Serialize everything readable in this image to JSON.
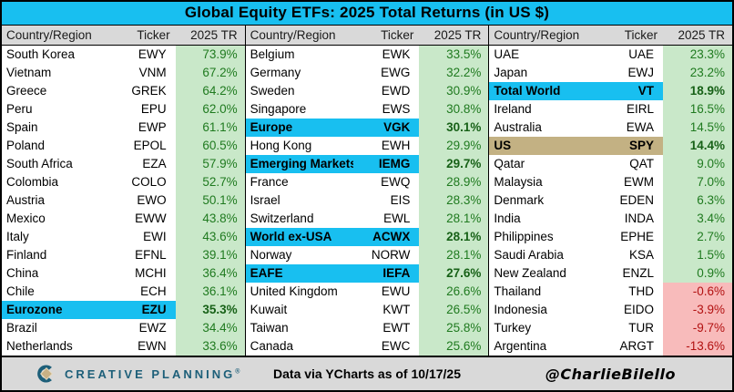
{
  "title": "Global Equity ETFs: 2025 Total Returns (in US $)",
  "columns": {
    "country": "Country/Region",
    "ticker": "Ticker",
    "ret": "2025 TR"
  },
  "footer": {
    "logo_text": "CREATIVE PLANNING",
    "logo_reg_mark": "®",
    "source": "Data via YCharts as of 10/17/25",
    "handle": "@CharlieBilello"
  },
  "colors": {
    "accent_cyan": "#18BFF0",
    "highlight_tan": "#C3B183",
    "header_gray": "#D9D9D9",
    "positive_bg": "#C9E8C9",
    "positive_text": "#1F7A1F",
    "negative_bg": "#F8BBBB",
    "negative_text": "#B21111",
    "logo_teal": "#1D5F79",
    "logo_gold": "#C8B185"
  },
  "chart_data": {
    "type": "table",
    "title": "Global Equity ETFs: 2025 Total Returns (in US $)",
    "columns": [
      "Country/Region",
      "Ticker",
      "2025 TR"
    ],
    "groups": [
      {
        "rows": [
          {
            "country": "South Korea",
            "ticker": "EWY",
            "tr": "73.9%",
            "highlight": null
          },
          {
            "country": "Vietnam",
            "ticker": "VNM",
            "tr": "67.2%",
            "highlight": null
          },
          {
            "country": "Greece",
            "ticker": "GREK",
            "tr": "64.2%",
            "highlight": null
          },
          {
            "country": "Peru",
            "ticker": "EPU",
            "tr": "62.0%",
            "highlight": null
          },
          {
            "country": "Spain",
            "ticker": "EWP",
            "tr": "61.1%",
            "highlight": null
          },
          {
            "country": "Poland",
            "ticker": "EPOL",
            "tr": "60.5%",
            "highlight": null
          },
          {
            "country": "South Africa",
            "ticker": "EZA",
            "tr": "57.9%",
            "highlight": null
          },
          {
            "country": "Colombia",
            "ticker": "COLO",
            "tr": "52.7%",
            "highlight": null
          },
          {
            "country": "Austria",
            "ticker": "EWO",
            "tr": "50.1%",
            "highlight": null
          },
          {
            "country": "Mexico",
            "ticker": "EWW",
            "tr": "43.8%",
            "highlight": null
          },
          {
            "country": "Italy",
            "ticker": "EWI",
            "tr": "43.6%",
            "highlight": null
          },
          {
            "country": "Finland",
            "ticker": "EFNL",
            "tr": "39.1%",
            "highlight": null
          },
          {
            "country": "China",
            "ticker": "MCHI",
            "tr": "36.4%",
            "highlight": null
          },
          {
            "country": "Chile",
            "ticker": "ECH",
            "tr": "36.1%",
            "highlight": null
          },
          {
            "country": "Eurozone",
            "ticker": "EZU",
            "tr": "35.3%",
            "highlight": "cyan"
          },
          {
            "country": "Brazil",
            "ticker": "EWZ",
            "tr": "34.4%",
            "highlight": null
          },
          {
            "country": "Netherlands",
            "ticker": "EWN",
            "tr": "33.6%",
            "highlight": null
          }
        ]
      },
      {
        "rows": [
          {
            "country": "Belgium",
            "ticker": "EWK",
            "tr": "33.5%",
            "highlight": null
          },
          {
            "country": "Germany",
            "ticker": "EWG",
            "tr": "32.2%",
            "highlight": null
          },
          {
            "country": "Sweden",
            "ticker": "EWD",
            "tr": "30.9%",
            "highlight": null
          },
          {
            "country": "Singapore",
            "ticker": "EWS",
            "tr": "30.8%",
            "highlight": null
          },
          {
            "country": "Europe",
            "ticker": "VGK",
            "tr": "30.1%",
            "highlight": "cyan"
          },
          {
            "country": "Hong Kong",
            "ticker": "EWH",
            "tr": "29.9%",
            "highlight": null
          },
          {
            "country": "Emerging Markets",
            "ticker": "IEMG",
            "tr": "29.7%",
            "highlight": "cyan"
          },
          {
            "country": "France",
            "ticker": "EWQ",
            "tr": "28.9%",
            "highlight": null
          },
          {
            "country": "Israel",
            "ticker": "EIS",
            "tr": "28.3%",
            "highlight": null
          },
          {
            "country": "Switzerland",
            "ticker": "EWL",
            "tr": "28.1%",
            "highlight": null
          },
          {
            "country": "World ex-USA",
            "ticker": "ACWX",
            "tr": "28.1%",
            "highlight": "cyan"
          },
          {
            "country": "Norway",
            "ticker": "NORW",
            "tr": "28.1%",
            "highlight": null
          },
          {
            "country": "EAFE",
            "ticker": "IEFA",
            "tr": "27.6%",
            "highlight": "cyan"
          },
          {
            "country": "United Kingdom",
            "ticker": "EWU",
            "tr": "26.6%",
            "highlight": null
          },
          {
            "country": "Kuwait",
            "ticker": "KWT",
            "tr": "26.5%",
            "highlight": null
          },
          {
            "country": "Taiwan",
            "ticker": "EWT",
            "tr": "25.8%",
            "highlight": null
          },
          {
            "country": "Canada",
            "ticker": "EWC",
            "tr": "25.6%",
            "highlight": null
          }
        ]
      },
      {
        "rows": [
          {
            "country": "UAE",
            "ticker": "UAE",
            "tr": "23.3%",
            "highlight": null
          },
          {
            "country": "Japan",
            "ticker": "EWJ",
            "tr": "23.2%",
            "highlight": null
          },
          {
            "country": "Total World",
            "ticker": "VT",
            "tr": "18.9%",
            "highlight": "cyan"
          },
          {
            "country": "Ireland",
            "ticker": "EIRL",
            "tr": "16.5%",
            "highlight": null
          },
          {
            "country": "Australia",
            "ticker": "EWA",
            "tr": "14.5%",
            "highlight": null
          },
          {
            "country": "US",
            "ticker": "SPY",
            "tr": "14.4%",
            "highlight": "tan"
          },
          {
            "country": "Qatar",
            "ticker": "QAT",
            "tr": "9.0%",
            "highlight": null
          },
          {
            "country": "Malaysia",
            "ticker": "EWM",
            "tr": "7.0%",
            "highlight": null
          },
          {
            "country": "Denmark",
            "ticker": "EDEN",
            "tr": "6.3%",
            "highlight": null
          },
          {
            "country": "India",
            "ticker": "INDA",
            "tr": "3.4%",
            "highlight": null
          },
          {
            "country": "Philippines",
            "ticker": "EPHE",
            "tr": "2.7%",
            "highlight": null
          },
          {
            "country": "Saudi Arabia",
            "ticker": "KSA",
            "tr": "1.5%",
            "highlight": null
          },
          {
            "country": "New Zealand",
            "ticker": "ENZL",
            "tr": "0.9%",
            "highlight": null
          },
          {
            "country": "Thailand",
            "ticker": "THD",
            "tr": "-0.6%",
            "highlight": null
          },
          {
            "country": "Indonesia",
            "ticker": "EIDO",
            "tr": "-3.9%",
            "highlight": null
          },
          {
            "country": "Turkey",
            "ticker": "TUR",
            "tr": "-9.7%",
            "highlight": null
          },
          {
            "country": "Argentina",
            "ticker": "ARGT",
            "tr": "-13.6%",
            "highlight": null
          }
        ]
      }
    ]
  }
}
